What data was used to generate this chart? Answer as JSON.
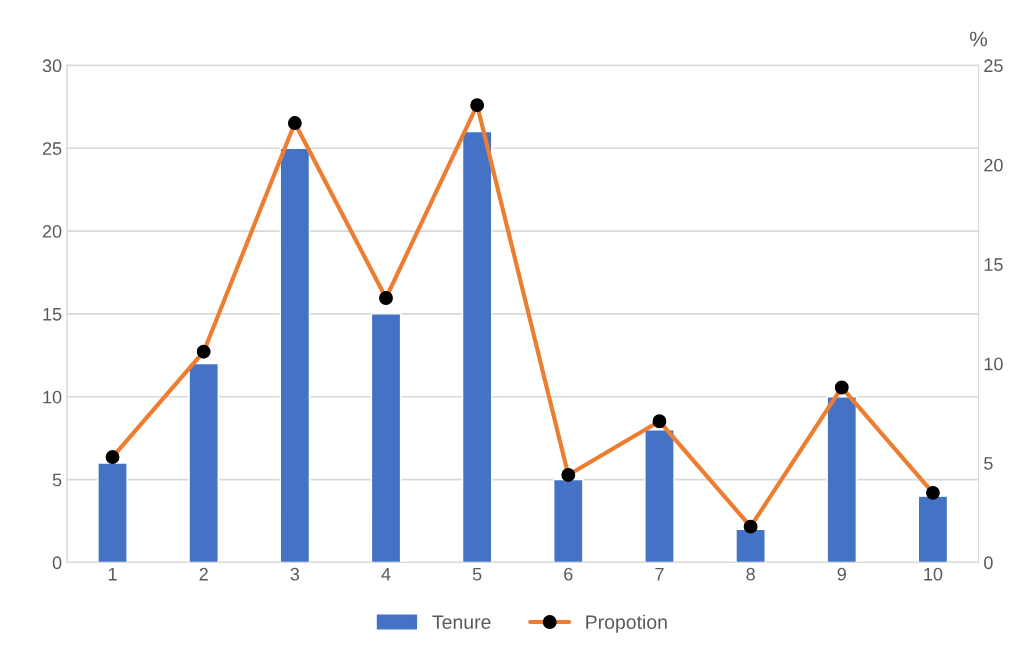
{
  "chart_data": {
    "type": "bar",
    "categories": [
      "1",
      "2",
      "3",
      "4",
      "5",
      "6",
      "7",
      "8",
      "9",
      "10"
    ],
    "series": [
      {
        "name": "Tenure",
        "color": "#4472c4",
        "values": [
          6,
          12,
          25,
          15,
          26,
          5,
          8,
          2,
          10,
          4
        ]
      },
      {
        "name": "Propotion",
        "type": "line",
        "axis": "y2",
        "color": "#ed7d31",
        "marker": "circle",
        "values": [
          5.3,
          10.6,
          22.1,
          13.3,
          23.0,
          4.4,
          7.1,
          1.8,
          8.8,
          3.5
        ]
      }
    ],
    "ylim": [
      0,
      30
    ],
    "yticks": [
      0,
      5,
      10,
      15,
      20,
      25,
      30
    ],
    "y2lim": [
      0,
      25
    ],
    "y2ticks": [
      0,
      5,
      10,
      15,
      20,
      25
    ],
    "y2label": "%",
    "grid": "y",
    "legend": "bottom",
    "line_style": "solid"
  }
}
